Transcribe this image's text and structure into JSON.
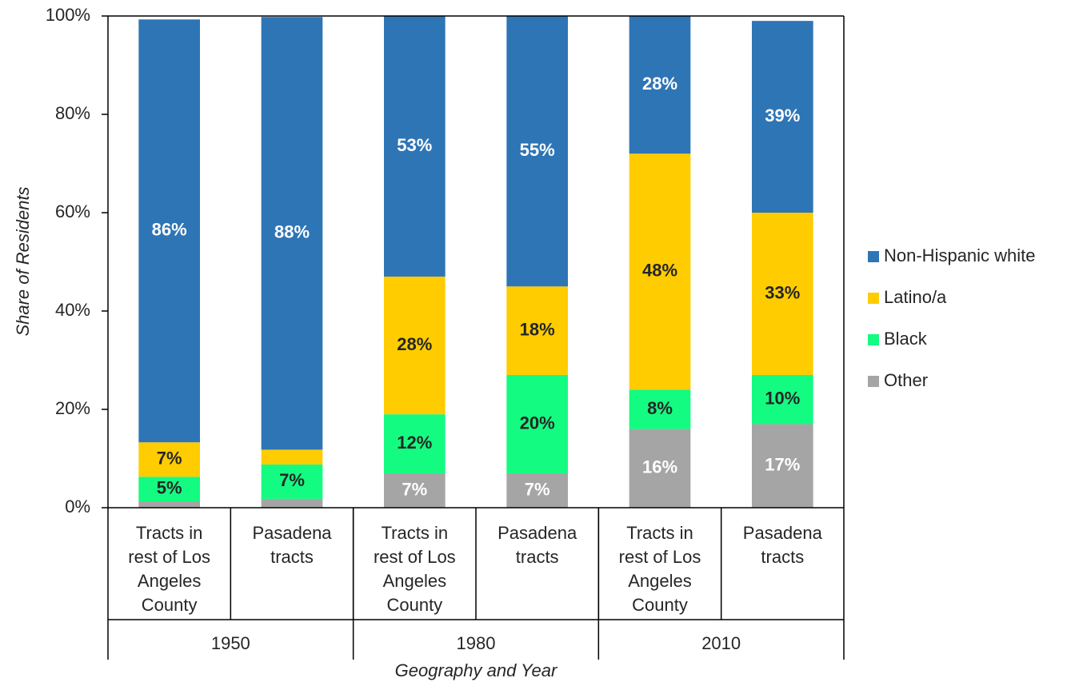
{
  "chart_data": {
    "type": "stacked_bar",
    "y_label": "Share of Residents",
    "x_label": "Geography and Year",
    "categories": [
      "Tracts in rest of Los Angeles County",
      "Pasadena tracts",
      "Tracts in rest of Los Angeles County",
      "Pasadena tracts",
      "Tracts in rest of Los Angeles County",
      "Pasadena tracts"
    ],
    "groups": [
      "1950",
      "1980",
      "2010"
    ],
    "ylim": [
      0,
      100
    ],
    "yticks": [
      {
        "value": 0,
        "label": "0%"
      },
      {
        "value": 20,
        "label": "20%"
      },
      {
        "value": 40,
        "label": "40%"
      },
      {
        "value": 60,
        "label": "60%"
      },
      {
        "value": 80,
        "label": "80%"
      },
      {
        "value": 100,
        "label": "100%"
      }
    ],
    "legend": "right",
    "series": [
      {
        "name": "Non-Hispanic white",
        "color": "#2e75b6",
        "label_color": "#ffffff",
        "values": [
          86,
          88,
          53,
          55,
          28,
          39
        ],
        "value_labels": [
          "86%",
          "88%",
          "53%",
          "55%",
          "28%",
          "39%"
        ]
      },
      {
        "name": "Latino/a",
        "color": "#ffcc00",
        "label_color": "#262626",
        "values": [
          7,
          3,
          28,
          18,
          48,
          33
        ],
        "value_labels": [
          "7%",
          null,
          "28%",
          "18%",
          "48%",
          "33%"
        ]
      },
      {
        "name": "Black",
        "color": "#14fb82",
        "label_color": "#262626",
        "values": [
          5,
          7,
          12,
          20,
          8,
          10
        ],
        "value_labels": [
          "5%",
          "7%",
          "12%",
          "20%",
          "8%",
          "10%"
        ]
      },
      {
        "name": "Other",
        "color": "#a5a5a5",
        "label_color": "#ffffff",
        "values": [
          1.3,
          1.8,
          7,
          7,
          16,
          17
        ],
        "value_labels": [
          null,
          null,
          "7%",
          "7%",
          "16%",
          "17%"
        ]
      }
    ]
  }
}
